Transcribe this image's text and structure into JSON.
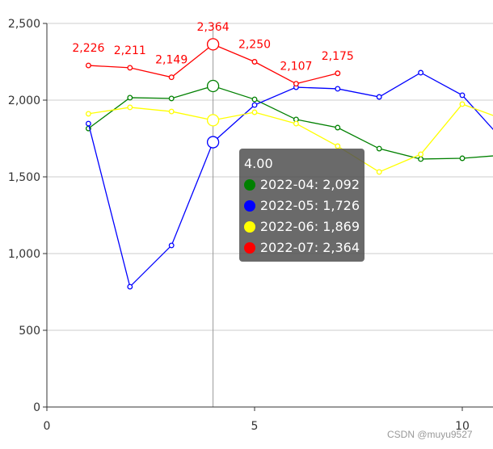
{
  "chart_data": {
    "type": "line",
    "title": "",
    "xlabel": "",
    "ylabel": "",
    "xlim": [
      0,
      10.8
    ],
    "ylim": [
      0,
      2500
    ],
    "x_ticks": [
      "0",
      "5",
      "10"
    ],
    "y_ticks": [
      "0",
      "500",
      "1,000",
      "1,500",
      "2,000",
      "2,500"
    ],
    "grid": true,
    "legend": "none",
    "series": [
      {
        "name": "2022-04",
        "color": "#008000",
        "x": [
          1,
          2,
          3,
          4,
          5,
          6,
          7,
          8,
          9,
          10,
          11
        ],
        "values": [
          1815,
          2016,
          2011,
          2092,
          2005,
          1874,
          1821,
          1684,
          1616,
          1621,
          1642
        ]
      },
      {
        "name": "2022-05",
        "color": "#0000ff",
        "x": [
          1,
          2,
          3,
          4,
          5,
          6,
          7,
          8,
          9,
          10,
          11
        ],
        "values": [
          1847,
          784,
          1053,
          1726,
          1968,
          2084,
          2074,
          2021,
          2179,
          2032,
          1732
        ]
      },
      {
        "name": "2022-06",
        "color": "#ffff00",
        "x": [
          1,
          2,
          3,
          4,
          5,
          6,
          7,
          8,
          9,
          10,
          11
        ],
        "values": [
          1911,
          1953,
          1926,
          1869,
          1921,
          1847,
          1700,
          1532,
          1647,
          1974,
          1874
        ]
      },
      {
        "name": "2022-07",
        "color": "#ff0000",
        "x": [
          1,
          2,
          3,
          4,
          5,
          6,
          7
        ],
        "values": [
          2226,
          2211,
          2149,
          2364,
          2250,
          2107,
          2175
        ],
        "labels": [
          "2,226",
          "2,211",
          "2,149",
          "2,364",
          "2,250",
          "2,107",
          "2,175"
        ]
      }
    ],
    "hover_x": 4
  },
  "tooltip": {
    "title": "4.00",
    "rows": [
      {
        "label": "2022-04: 2,092",
        "color": "#008000"
      },
      {
        "label": "2022-05: 1,726",
        "color": "#0000ff"
      },
      {
        "label": "2022-06: 1,869",
        "color": "#ffff00"
      },
      {
        "label": "2022-07: 2,364",
        "color": "#ff0000"
      }
    ]
  },
  "watermark": "CSDN @muyu9527"
}
